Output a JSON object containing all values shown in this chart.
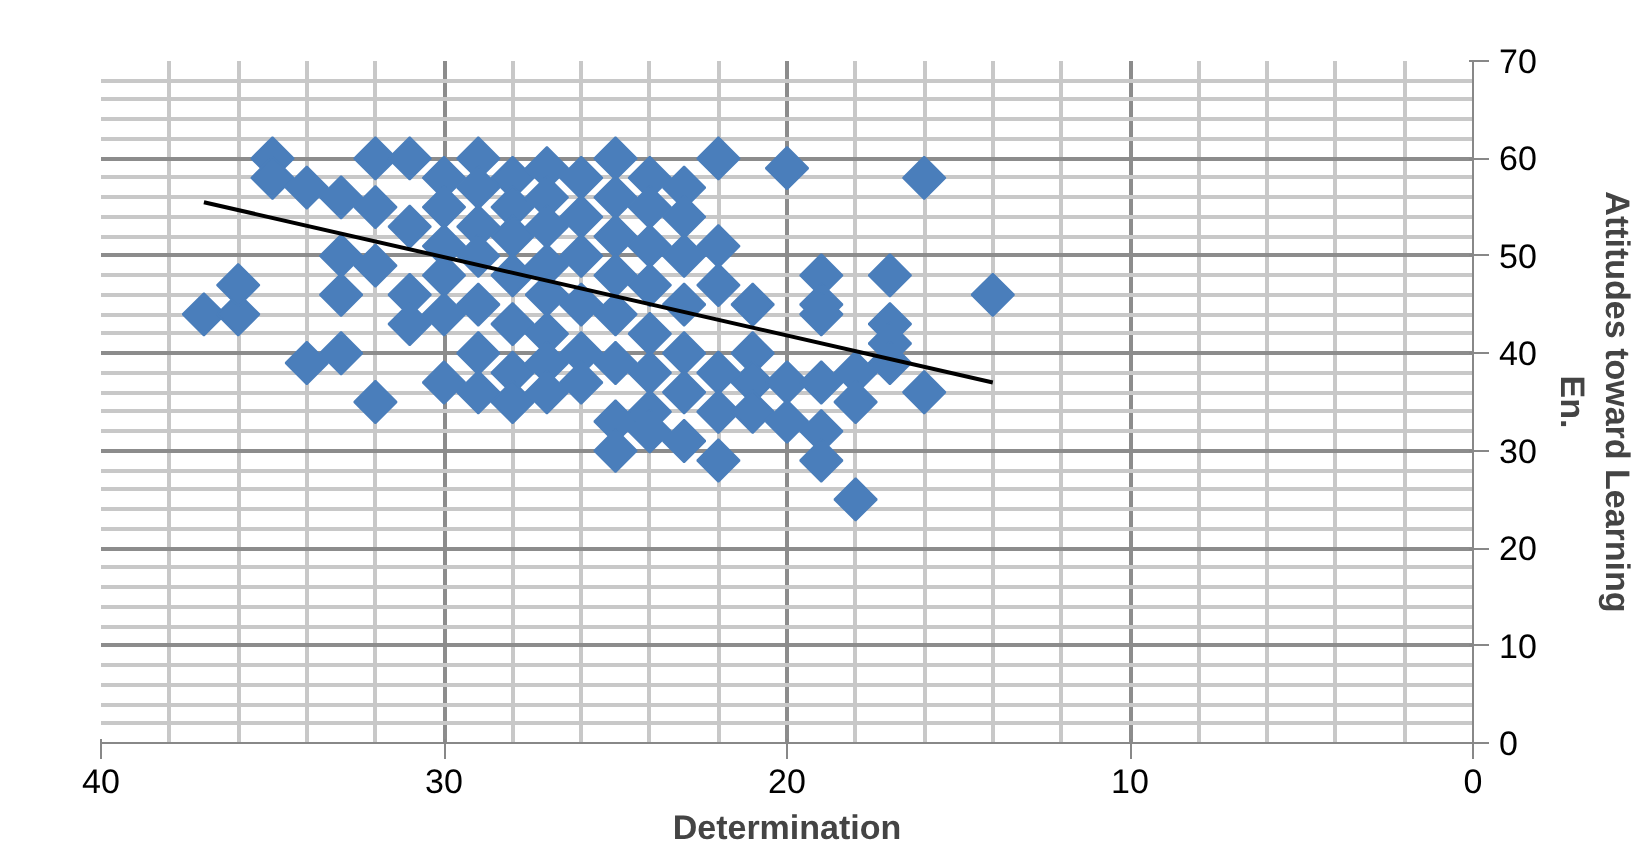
{
  "chart_data": {
    "type": "scatter",
    "xlabel": "Determination",
    "ylabel": "Attitudes toward Learning En.",
    "xlim": [
      40,
      0
    ],
    "xticks": [
      40,
      30,
      20,
      10,
      0
    ],
    "ylim": [
      0,
      70
    ],
    "yticks": [
      0,
      10,
      20,
      30,
      40,
      50,
      60,
      70
    ],
    "grid": true,
    "marker": "diamond",
    "series": [
      {
        "color": "#4a7ebb",
        "x": [
          37,
          36,
          36,
          35,
          35,
          34,
          34,
          33,
          33,
          33,
          33,
          32,
          32,
          32,
          32,
          31,
          31,
          31,
          31,
          30,
          30,
          30,
          30,
          30,
          30,
          29,
          29,
          29,
          29,
          29,
          29,
          29,
          28,
          28,
          28,
          28,
          28,
          28,
          28,
          27,
          27,
          27,
          27,
          27,
          27,
          27,
          27,
          26,
          26,
          26,
          26,
          26,
          26,
          25,
          25,
          25,
          25,
          25,
          25,
          25,
          25,
          24,
          24,
          24,
          24,
          24,
          24,
          24,
          24,
          23,
          23,
          23,
          23,
          23,
          23,
          23,
          22,
          22,
          22,
          22,
          22,
          22,
          21,
          21,
          21,
          21,
          20,
          20,
          20,
          19,
          19,
          19,
          19,
          19,
          19,
          18,
          18,
          18,
          17,
          17,
          17,
          17,
          16,
          16,
          14
        ],
        "values": [
          44,
          44,
          47,
          60,
          58,
          57,
          39,
          56,
          50,
          46,
          40,
          60,
          55,
          49,
          35,
          60,
          53,
          46,
          43,
          58,
          55,
          51,
          48,
          44,
          37,
          60,
          57,
          53,
          50,
          45,
          40,
          36,
          58,
          55,
          52,
          48,
          43,
          38,
          35,
          59,
          56,
          53,
          49,
          46,
          42,
          39,
          36,
          58,
          54,
          50,
          45,
          40,
          37,
          60,
          56,
          52,
          48,
          44,
          39,
          33,
          30,
          58,
          55,
          51,
          47,
          42,
          38,
          34,
          32,
          57,
          54,
          50,
          45,
          40,
          36,
          31,
          60,
          51,
          47,
          38,
          34,
          29,
          45,
          40,
          37,
          34,
          59,
          37,
          33,
          48,
          45,
          44,
          37,
          32,
          29,
          38,
          35,
          25,
          48,
          43,
          41,
          39,
          58,
          36,
          46
        ]
      },
      {
        "type": "line",
        "color": "#000000",
        "marker": "none",
        "x": [
          37,
          14
        ],
        "values": [
          55.5,
          37
        ]
      }
    ]
  }
}
